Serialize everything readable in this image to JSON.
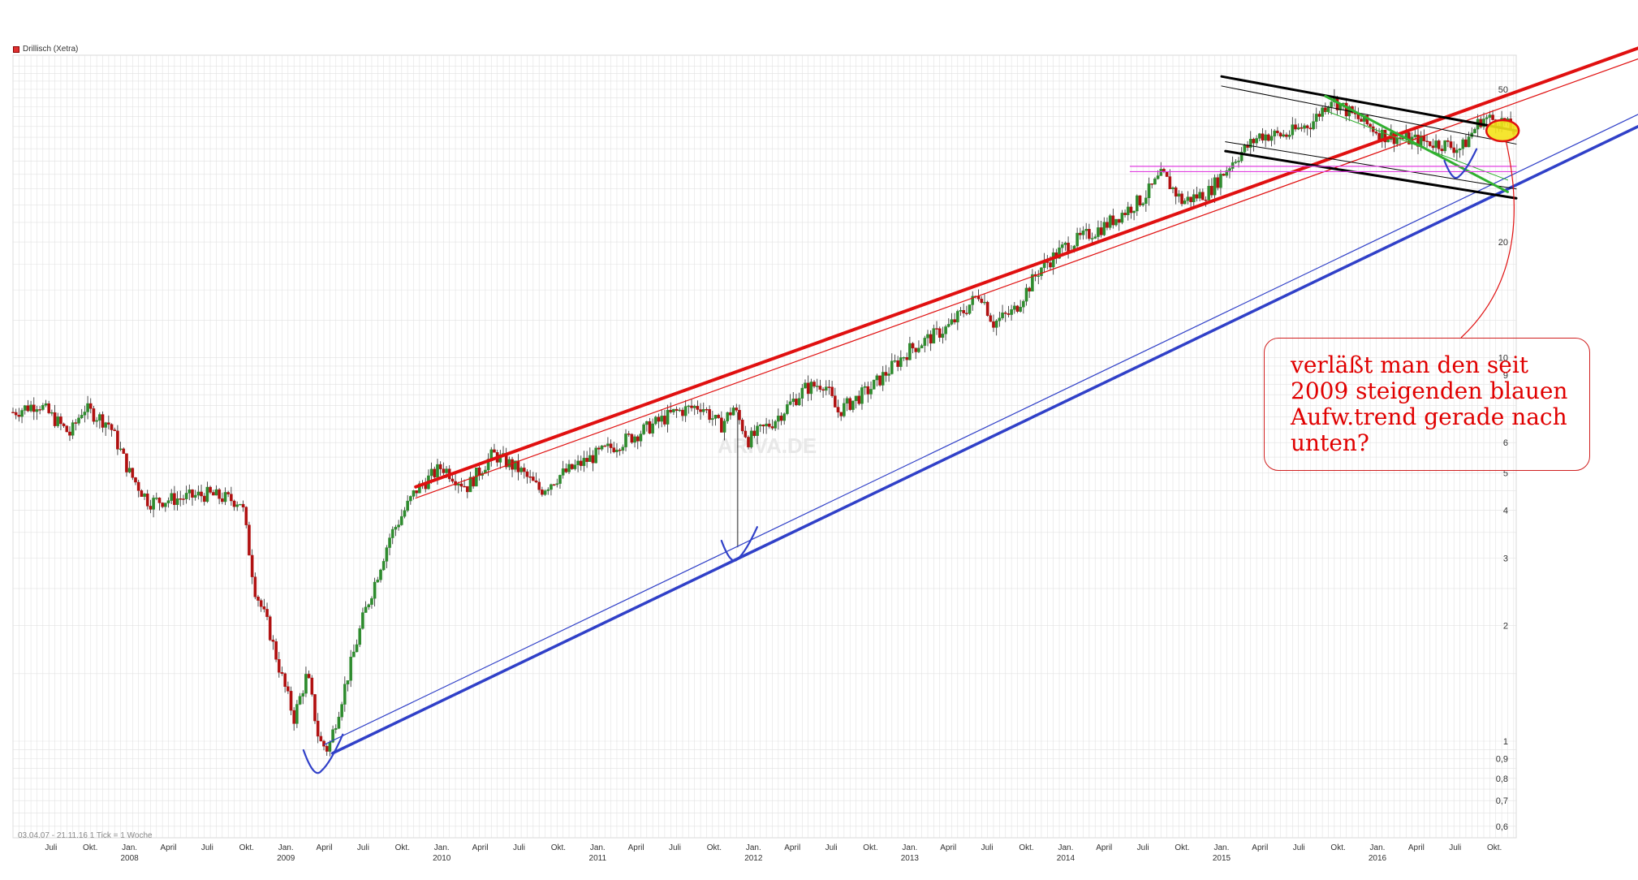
{
  "legend": {
    "label": "Drillisch (Xetra)",
    "color": "#e03030"
  },
  "footer": "03.04.07 - 21.11.16   1 Tick = 1 Woche",
  "annotation": "verläßt man den seit 2009 steigenden blauen Aufw.trend gerade nach unten?",
  "watermark": "ARIVA.DE",
  "colors": {
    "red_trend": "#e01010",
    "blue_trend": "#3040c8",
    "black_channel": "#000000",
    "green_trend": "#30b030",
    "magenta_line": "#e040e0",
    "candle_up": "#2e8b2e",
    "candle_down": "#b01010",
    "grid": "#e2e2e2",
    "annotation": "#e00000"
  },
  "chart_data": {
    "type": "candlestick",
    "title": "",
    "legend": "Drillisch (Xetra)",
    "yscale": "log",
    "ylim": [
      0.55,
      62
    ],
    "xlim": [
      "2007-04-03",
      "2016-11-21"
    ],
    "y_ticks": [
      "50",
      "20",
      "10",
      "9",
      "6",
      "5",
      "4",
      "3",
      "2",
      "1",
      "0,9",
      "0,8",
      "0,7",
      "0,6"
    ],
    "y_tick_values": [
      50,
      20,
      10,
      9,
      6,
      5,
      4,
      3,
      2,
      1,
      0.9,
      0.8,
      0.7,
      0.6
    ],
    "x_month_labels": [
      "Juli",
      "Okt.",
      "Jan.",
      "April",
      "Juli",
      "Okt.",
      "Jan.",
      "April",
      "Juli",
      "Okt.",
      "Jan.",
      "April",
      "Juli",
      "Okt.",
      "Jan.",
      "April",
      "Juli",
      "Okt.",
      "Jan.",
      "April",
      "Juli",
      "Okt.",
      "Jan.",
      "April",
      "Juli",
      "Okt.",
      "Jan.",
      "April",
      "Juli",
      "Okt.",
      "Jan.",
      "April",
      "Juli",
      "Okt.",
      "Jan.",
      "April",
      "Juli",
      "Okt."
    ],
    "x_month_dates": [
      "2007-07-01",
      "2007-10-01",
      "2008-01-01",
      "2008-04-01",
      "2008-07-01",
      "2008-10-01",
      "2009-01-01",
      "2009-04-01",
      "2009-07-01",
      "2009-10-01",
      "2010-01-01",
      "2010-04-01",
      "2010-07-01",
      "2010-10-01",
      "2011-01-01",
      "2011-04-01",
      "2011-07-01",
      "2011-10-01",
      "2012-01-01",
      "2012-04-01",
      "2012-07-01",
      "2012-10-01",
      "2013-01-01",
      "2013-04-01",
      "2013-07-01",
      "2013-10-01",
      "2014-01-01",
      "2014-04-01",
      "2014-07-01",
      "2014-10-01",
      "2015-01-01",
      "2015-04-01",
      "2015-07-01",
      "2015-10-01",
      "2016-01-01",
      "2016-04-01",
      "2016-07-01",
      "2016-10-01"
    ],
    "x_year_labels": [
      "2008",
      "2009",
      "2010",
      "2011",
      "2012",
      "2013",
      "2014",
      "2015",
      "2016"
    ],
    "x_year_dates": [
      "2008-01-01",
      "2009-01-01",
      "2010-01-01",
      "2011-01-01",
      "2012-01-01",
      "2013-01-01",
      "2014-01-01",
      "2015-01-01",
      "2016-01-01"
    ],
    "price_path": [
      [
        "2007-04-03",
        7.2
      ],
      [
        "2007-06-01",
        7.6
      ],
      [
        "2007-08-15",
        6.3
      ],
      [
        "2007-09-15",
        7.4
      ],
      [
        "2007-11-15",
        6.7
      ],
      [
        "2008-01-01",
        5.0
      ],
      [
        "2008-02-15",
        4.2
      ],
      [
        "2008-05-01",
        4.3
      ],
      [
        "2008-07-01",
        4.4
      ],
      [
        "2008-09-20",
        4.2
      ],
      [
        "2008-10-20",
        2.5
      ],
      [
        "2008-11-20",
        2.0
      ],
      [
        "2008-12-20",
        1.5
      ],
      [
        "2009-01-20",
        1.15
      ],
      [
        "2009-02-20",
        1.5
      ],
      [
        "2009-03-20",
        1.0
      ],
      [
        "2009-04-10",
        0.95
      ],
      [
        "2009-05-20",
        1.4
      ],
      [
        "2009-07-01",
        2.1
      ],
      [
        "2009-09-01",
        3.4
      ],
      [
        "2009-11-01",
        4.5
      ],
      [
        "2010-01-01",
        5.2
      ],
      [
        "2010-03-01",
        4.6
      ],
      [
        "2010-05-01",
        5.6
      ],
      [
        "2010-07-01",
        5.1
      ],
      [
        "2010-08-20",
        4.5
      ],
      [
        "2010-10-01",
        4.9
      ],
      [
        "2011-01-01",
        5.6
      ],
      [
        "2011-04-01",
        6.3
      ],
      [
        "2011-07-01",
        7.2
      ],
      [
        "2011-09-01",
        7.5
      ],
      [
        "2011-10-15",
        6.6
      ],
      [
        "2011-11-15",
        7.4
      ],
      [
        "2011-12-20",
        6.1
      ],
      [
        "2012-02-15",
        6.8
      ],
      [
        "2012-05-01",
        8.3
      ],
      [
        "2012-06-15",
        8.6
      ],
      [
        "2012-07-15",
        7.2
      ],
      [
        "2012-10-01",
        8.3
      ],
      [
        "2013-01-01",
        10.5
      ],
      [
        "2013-04-01",
        12.0
      ],
      [
        "2013-05-15",
        13.5
      ],
      [
        "2013-06-15",
        14.8
      ],
      [
        "2013-07-15",
        12.3
      ],
      [
        "2013-09-01",
        13.2
      ],
      [
        "2013-11-01",
        17.0
      ],
      [
        "2014-01-01",
        19.5
      ],
      [
        "2014-04-01",
        22.0
      ],
      [
        "2014-07-01",
        26.0
      ],
      [
        "2014-08-15",
        30.0
      ],
      [
        "2014-10-01",
        25.5
      ],
      [
        "2014-12-01",
        27.0
      ],
      [
        "2015-02-01",
        33.0
      ],
      [
        "2015-04-01",
        38.0
      ],
      [
        "2015-06-01",
        38.0
      ],
      [
        "2015-08-01",
        41.0
      ],
      [
        "2015-09-15",
        47.5
      ],
      [
        "2015-11-01",
        43.0
      ],
      [
        "2016-01-15",
        38.0
      ],
      [
        "2016-03-15",
        37.0
      ],
      [
        "2016-06-01",
        36.0
      ],
      [
        "2016-07-15",
        35.0
      ],
      [
        "2016-09-01",
        42.0
      ],
      [
        "2016-10-15",
        41.5
      ],
      [
        "2016-11-21",
        38.5
      ]
    ],
    "trendlines": [
      {
        "name": "red-upper",
        "color": "#e01010",
        "width": 4,
        "from": [
          "2009-11-01",
          4.6
        ],
        "to": [
          "2016-11-21",
          64.0
        ]
      },
      {
        "name": "red-upper-thin",
        "color": "#e01010",
        "width": 1.2,
        "from": [
          "2009-11-01",
          4.3
        ],
        "to": [
          "2016-11-21",
          60.0
        ]
      },
      {
        "name": "blue-support",
        "color": "#3040c8",
        "width": 3.5,
        "from": [
          "2009-04-20",
          0.93
        ],
        "to": [
          "2016-11-21",
          40.0
        ]
      },
      {
        "name": "blue-support-thin",
        "color": "#3040c8",
        "width": 1.2,
        "from": [
          "2009-04-01",
          0.98
        ],
        "to": [
          "2016-11-21",
          43.0
        ]
      },
      {
        "name": "black-channel-top",
        "color": "#000000",
        "width": 3,
        "from": [
          "2015-01-01",
          54.0
        ],
        "to": [
          "2016-11-21",
          39.0
        ]
      },
      {
        "name": "black-channel-top-thin",
        "color": "#000000",
        "width": 1,
        "from": [
          "2015-01-01",
          51.0
        ],
        "to": [
          "2016-11-21",
          36.0
        ]
      },
      {
        "name": "black-channel-bottom",
        "color": "#000000",
        "width": 3,
        "from": [
          "2015-01-10",
          34.5
        ],
        "to": [
          "2016-11-21",
          26.0
        ]
      },
      {
        "name": "black-channel-bottom-thin",
        "color": "#000000",
        "width": 1,
        "from": [
          "2015-01-10",
          36.5
        ],
        "to": [
          "2016-11-21",
          27.5
        ]
      },
      {
        "name": "green-downtrend",
        "color": "#30b030",
        "width": 3,
        "from": [
          "2015-09-01",
          48.0
        ],
        "to": [
          "2016-11-01",
          27.0
        ]
      },
      {
        "name": "green-downtrend-thin",
        "color": "#30b030",
        "width": 1,
        "from": [
          "2015-09-01",
          44.0
        ],
        "to": [
          "2016-11-01",
          29.0
        ]
      },
      {
        "name": "magenta-horizontal",
        "color": "#e040e0",
        "width": 1.2,
        "from": [
          "2014-06-01",
          31.5
        ],
        "to": [
          "2016-11-21",
          31.5
        ]
      },
      {
        "name": "magenta-horizontal-2",
        "color": "#e040e0",
        "width": 1.2,
        "from": [
          "2014-06-01",
          30.5
        ],
        "to": [
          "2016-11-21",
          30.5
        ]
      }
    ]
  }
}
